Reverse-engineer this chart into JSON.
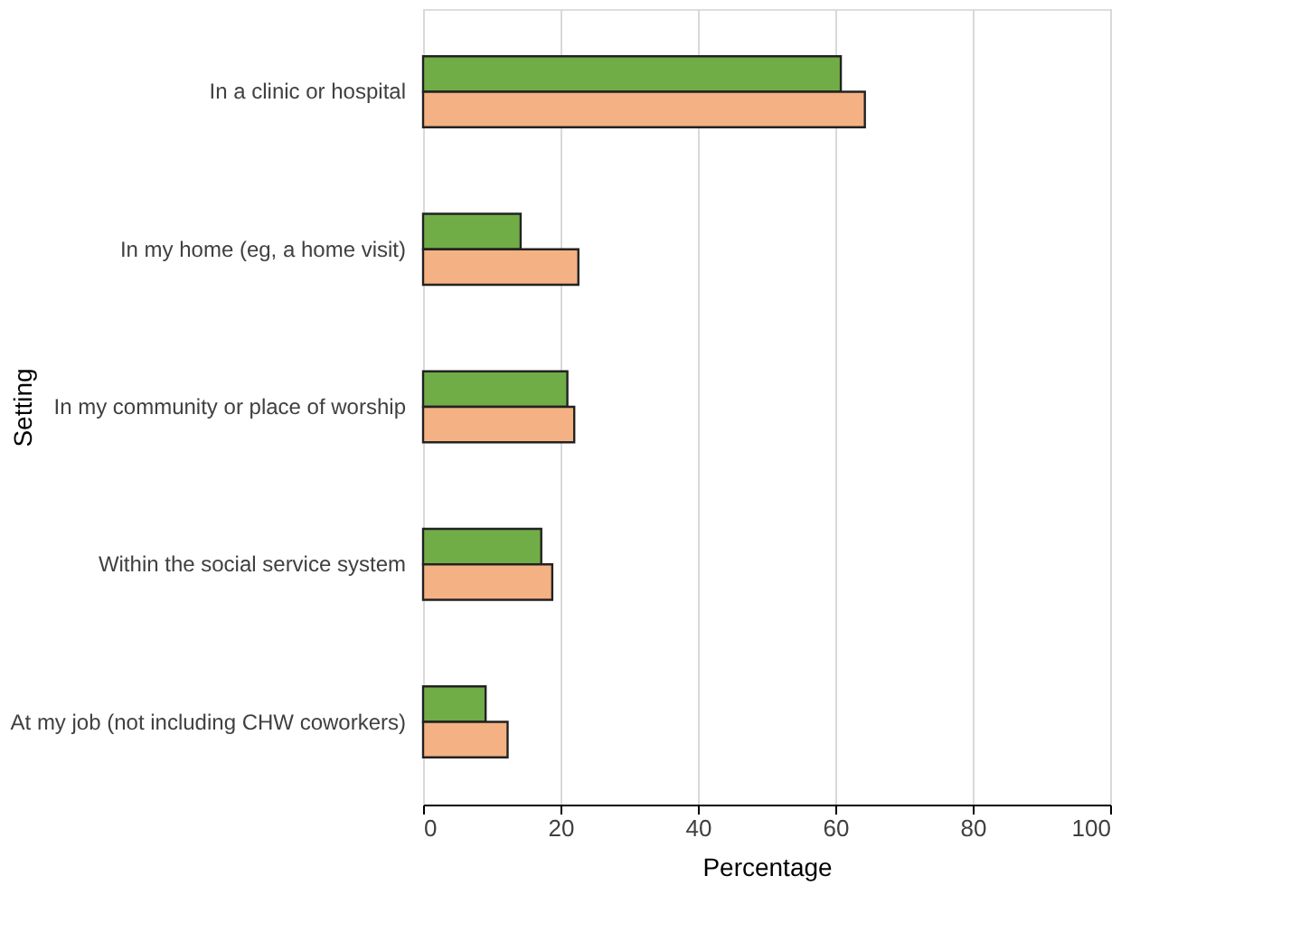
{
  "chart_data": {
    "type": "bar",
    "orientation": "horizontal",
    "xlabel": "Percentage",
    "ylabel": "Setting",
    "categories": [
      "In a clinic or hospital",
      "In my home (eg, a home visit)",
      "In my community or place of worship",
      "Within the social service system",
      "At my job (not including CHW coworkers)"
    ],
    "series": [
      {
        "color": "#70ad47",
        "values": [
          60.8,
          14.2,
          21.0,
          17.2,
          9.1
        ]
      },
      {
        "color": "#f4b183",
        "values": [
          64.3,
          22.6,
          22.0,
          18.8,
          12.3
        ]
      }
    ],
    "xlim": [
      0,
      100
    ],
    "xticks": [
      0,
      20,
      40,
      60,
      80,
      100
    ],
    "grid": "x"
  }
}
